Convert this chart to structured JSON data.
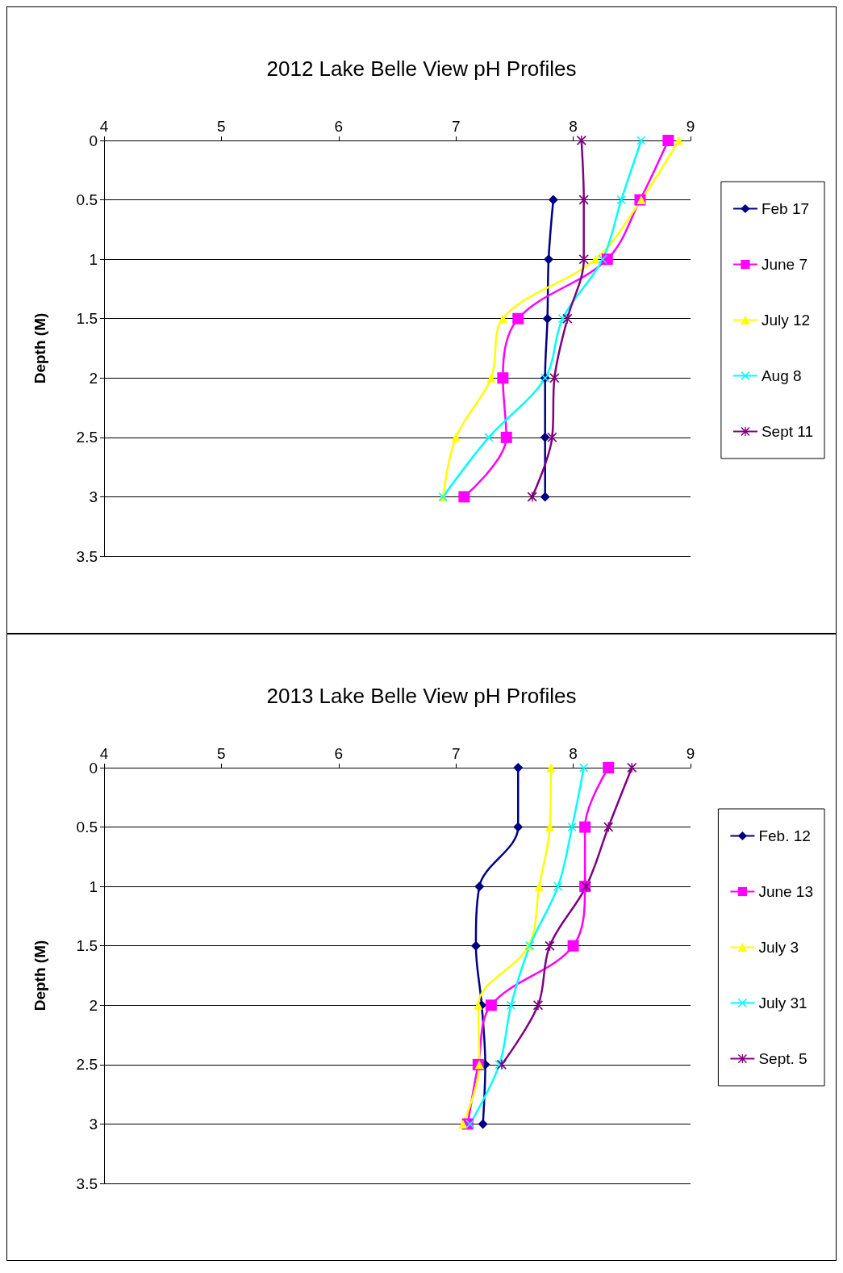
{
  "chart_data": [
    {
      "type": "line",
      "title": "2012 Lake Belle View pH Profiles",
      "ylabel": "Depth (M)",
      "orientation": "horizontal",
      "x": [
        0,
        0.5,
        1,
        1.5,
        2,
        2.5,
        3
      ],
      "xlim": [
        4,
        9
      ],
      "xticks": [
        4,
        5,
        6,
        7,
        8,
        9
      ],
      "ylim": [
        3.5,
        0
      ],
      "yticks": [
        0,
        0.5,
        1,
        1.5,
        2,
        2.5,
        3,
        3.5
      ],
      "grid": "y",
      "legend": "right",
      "series": [
        {
          "name": "Feb 17",
          "color": "#000080",
          "marker": "diamond",
          "values": [
            null,
            7.83,
            7.79,
            7.78,
            7.76,
            7.76,
            7.76
          ]
        },
        {
          "name": "June 7",
          "color": "#ff00ff",
          "marker": "square",
          "values": [
            8.81,
            8.57,
            8.29,
            7.53,
            7.4,
            7.43,
            7.07
          ]
        },
        {
          "name": "July 12",
          "color": "#ffff00",
          "marker": "triangle",
          "values": [
            8.9,
            8.58,
            8.19,
            7.4,
            7.3,
            7.0,
            6.89
          ]
        },
        {
          "name": "Aug 8",
          "color": "#00ffff",
          "marker": "cross",
          "values": [
            8.58,
            8.41,
            8.25,
            7.91,
            7.76,
            7.28,
            6.89
          ]
        },
        {
          "name": "Sept 11",
          "color": "#800080",
          "marker": "star",
          "values": [
            8.07,
            8.09,
            8.09,
            7.95,
            7.84,
            7.82,
            7.65
          ]
        }
      ]
    },
    {
      "type": "line",
      "title": "2013 Lake Belle View pH Profiles",
      "ylabel": "Depth (M)",
      "orientation": "horizontal",
      "x": [
        0,
        0.5,
        1,
        1.5,
        2,
        2.5,
        3
      ],
      "xlim": [
        4,
        9
      ],
      "xticks": [
        4,
        5,
        6,
        7,
        8,
        9
      ],
      "ylim": [
        3.5,
        0
      ],
      "yticks": [
        0,
        0.5,
        1,
        1.5,
        2,
        2.5,
        3,
        3.5
      ],
      "grid": "y",
      "legend": "right",
      "series": [
        {
          "name": "Feb. 12",
          "color": "#000080",
          "marker": "diamond",
          "values": [
            7.53,
            7.53,
            7.2,
            7.17,
            7.22,
            7.25,
            7.23
          ]
        },
        {
          "name": "June 13",
          "color": "#ff00ff",
          "marker": "square",
          "values": [
            8.3,
            8.1,
            8.1,
            8.0,
            7.3,
            7.19,
            7.1
          ]
        },
        {
          "name": "July 3",
          "color": "#ffff00",
          "marker": "triangle",
          "values": [
            7.81,
            7.8,
            7.71,
            7.62,
            7.19,
            7.2,
            7.06
          ]
        },
        {
          "name": "July 31",
          "color": "#00ffff",
          "marker": "cross",
          "values": [
            8.09,
            7.99,
            7.87,
            7.63,
            7.47,
            7.37,
            7.12
          ]
        },
        {
          "name": "Sept. 5",
          "color": "#800080",
          "marker": "star",
          "values": [
            8.5,
            8.3,
            8.11,
            7.8,
            7.7,
            7.39,
            null
          ]
        }
      ]
    }
  ]
}
